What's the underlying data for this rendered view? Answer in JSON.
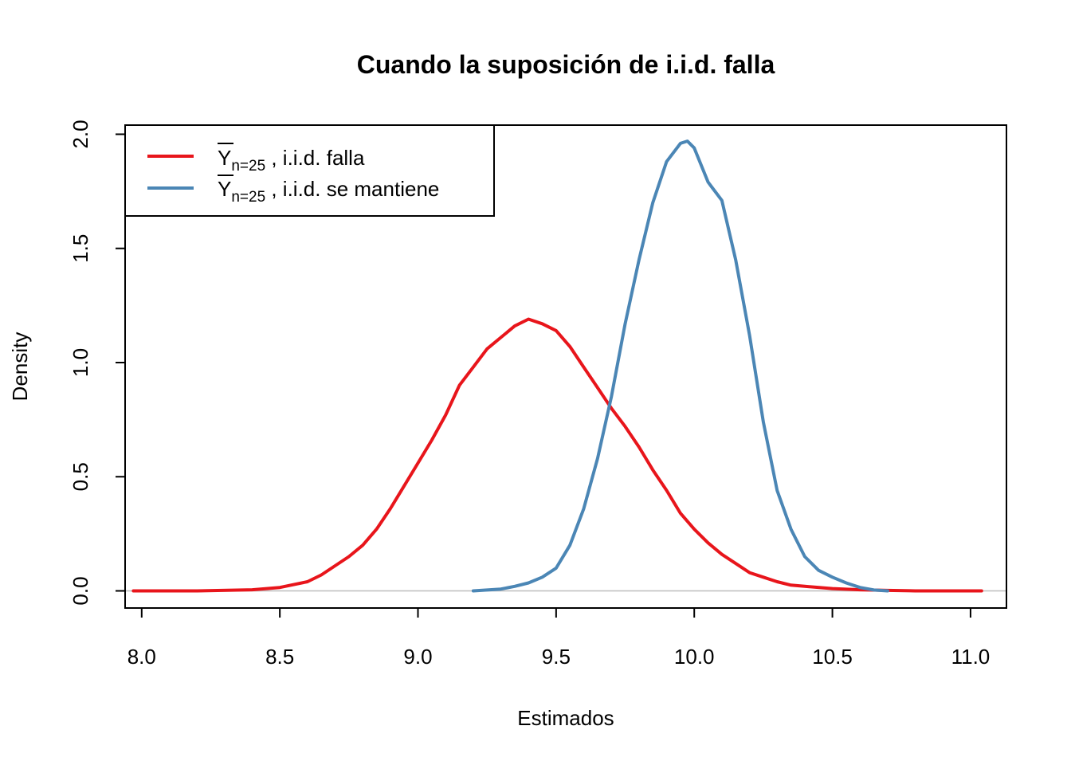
{
  "chart_data": {
    "type": "line",
    "title": "Cuando la suposición de i.i.d. falla",
    "xlabel": "Estimados",
    "ylabel": "Density",
    "xlim": [
      7.94,
      11.13
    ],
    "ylim": [
      -0.075,
      2.04
    ],
    "x_ticks": [
      "8.0",
      "8.5",
      "9.0",
      "9.5",
      "10.0",
      "10.5",
      "11.0"
    ],
    "y_ticks": [
      "0.0",
      "0.5",
      "1.0",
      "1.5",
      "2.0"
    ],
    "baseline": 0,
    "legend": {
      "position": "top-left",
      "entries": [
        {
          "symbol": "Y",
          "subscript": "n=25",
          "text": " , i.i.d. falla",
          "color": "#e8151b"
        },
        {
          "symbol": "Y",
          "subscript": "n=25",
          "text": " , i.i.d. se mantiene",
          "color": "#4b86b5"
        }
      ]
    },
    "series": [
      {
        "color": "#e8151b",
        "x": [
          7.97,
          8.2,
          8.4,
          8.5,
          8.6,
          8.65,
          8.7,
          8.75,
          8.8,
          8.85,
          8.9,
          8.95,
          9.0,
          9.05,
          9.1,
          9.15,
          9.2,
          9.25,
          9.3,
          9.35,
          9.4,
          9.45,
          9.5,
          9.55,
          9.6,
          9.65,
          9.7,
          9.75,
          9.8,
          9.85,
          9.9,
          9.95,
          10.0,
          10.05,
          10.1,
          10.15,
          10.2,
          10.25,
          10.3,
          10.35,
          10.4,
          10.5,
          10.6,
          10.7,
          10.8,
          11.04
        ],
        "y": [
          0,
          0,
          0.005,
          0.015,
          0.04,
          0.07,
          0.11,
          0.15,
          0.2,
          0.27,
          0.36,
          0.46,
          0.56,
          0.66,
          0.77,
          0.9,
          0.98,
          1.06,
          1.11,
          1.16,
          1.19,
          1.17,
          1.14,
          1.07,
          0.98,
          0.89,
          0.8,
          0.72,
          0.63,
          0.53,
          0.44,
          0.34,
          0.27,
          0.21,
          0.16,
          0.12,
          0.08,
          0.06,
          0.04,
          0.025,
          0.02,
          0.01,
          0.005,
          0.002,
          0,
          0
        ]
      },
      {
        "color": "#4b86b5",
        "x": [
          9.2,
          9.3,
          9.35,
          9.4,
          9.45,
          9.5,
          9.55,
          9.6,
          9.65,
          9.7,
          9.75,
          9.8,
          9.85,
          9.9,
          9.95,
          9.975,
          10.0,
          10.05,
          10.1,
          10.15,
          10.2,
          10.25,
          10.3,
          10.35,
          10.4,
          10.45,
          10.5,
          10.55,
          10.6,
          10.65,
          10.7
        ],
        "y": [
          0,
          0.008,
          0.02,
          0.035,
          0.06,
          0.1,
          0.2,
          0.36,
          0.58,
          0.85,
          1.17,
          1.45,
          1.7,
          1.88,
          1.96,
          1.97,
          1.94,
          1.79,
          1.71,
          1.45,
          1.12,
          0.74,
          0.44,
          0.27,
          0.15,
          0.09,
          0.06,
          0.035,
          0.015,
          0.004,
          0
        ]
      }
    ]
  }
}
